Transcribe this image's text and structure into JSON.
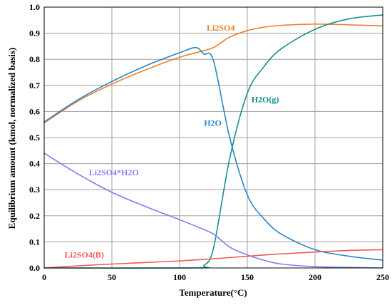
{
  "chart_data": {
    "type": "line",
    "title": "",
    "xlabel": "Temperature(°C)",
    "ylabel": "Equilibrium amount (kmol, normalized basis)",
    "xlim": [
      0,
      250
    ],
    "ylim": [
      0,
      1.0
    ],
    "x_ticks": [
      "0",
      "50",
      "100",
      "150",
      "200",
      "250"
    ],
    "y_ticks": [
      "0.0",
      "0.1",
      "0.2",
      "0.3",
      "0.4",
      "0.5",
      "0.6",
      "0.7",
      "0.8",
      "0.9",
      "1.0"
    ],
    "x_tick_values": [
      0,
      50,
      100,
      150,
      200,
      250
    ],
    "y_tick_values": [
      0,
      0.1,
      0.2,
      0.3,
      0.4,
      0.5,
      0.6,
      0.7,
      0.8,
      0.9,
      1.0
    ],
    "grid": true,
    "series": [
      {
        "name": "Li2SO4",
        "color": "#f07f2f",
        "label_pos": [
          120,
          0.91
        ],
        "points": [
          [
            0,
            0.556
          ],
          [
            25,
            0.64
          ],
          [
            50,
            0.705
          ],
          [
            75,
            0.76
          ],
          [
            100,
            0.808
          ],
          [
            112,
            0.825
          ],
          [
            125,
            0.845
          ],
          [
            137,
            0.885
          ],
          [
            150,
            0.91
          ],
          [
            162,
            0.923
          ],
          [
            175,
            0.93
          ],
          [
            200,
            0.935
          ],
          [
            225,
            0.932
          ],
          [
            250,
            0.928
          ]
        ]
      },
      {
        "name": "H2O",
        "color": "#2a85c8",
        "label_pos": [
          118,
          0.545
        ],
        "points": [
          [
            0,
            0.56
          ],
          [
            25,
            0.645
          ],
          [
            50,
            0.715
          ],
          [
            75,
            0.775
          ],
          [
            100,
            0.825
          ],
          [
            112,
            0.845
          ],
          [
            118,
            0.82
          ],
          [
            125,
            0.795
          ],
          [
            137,
            0.5
          ],
          [
            150,
            0.28
          ],
          [
            162,
            0.19
          ],
          [
            175,
            0.13
          ],
          [
            200,
            0.07
          ],
          [
            225,
            0.045
          ],
          [
            250,
            0.03
          ]
        ]
      },
      {
        "name": "H2O(g)",
        "color": "#159090",
        "label_pos": [
          153,
          0.635
        ],
        "points": [
          [
            0,
            0.0
          ],
          [
            112,
            0.0
          ],
          [
            118,
            0.01
          ],
          [
            125,
            0.075
          ],
          [
            137,
            0.42
          ],
          [
            150,
            0.67
          ],
          [
            162,
            0.77
          ],
          [
            175,
            0.84
          ],
          [
            200,
            0.915
          ],
          [
            225,
            0.955
          ],
          [
            250,
            0.97
          ]
        ]
      },
      {
        "name": "Li2SO4*H2O",
        "color": "#7f7ff0",
        "label_pos": [
          33,
          0.355
        ],
        "points": [
          [
            0,
            0.44
          ],
          [
            25,
            0.36
          ],
          [
            50,
            0.29
          ],
          [
            75,
            0.235
          ],
          [
            100,
            0.185
          ],
          [
            112,
            0.16
          ],
          [
            125,
            0.13
          ],
          [
            137,
            0.08
          ],
          [
            150,
            0.05
          ],
          [
            162,
            0.03
          ],
          [
            175,
            0.015
          ],
          [
            200,
            0.005
          ],
          [
            225,
            0.002
          ],
          [
            250,
            0.0
          ]
        ]
      },
      {
        "name": "Li2SO4(B)",
        "color": "#f05a5a",
        "label_pos": [
          15,
          0.04
        ],
        "points": [
          [
            0,
            0.0
          ],
          [
            25,
            0.008
          ],
          [
            50,
            0.015
          ],
          [
            75,
            0.021
          ],
          [
            100,
            0.027
          ],
          [
            125,
            0.035
          ],
          [
            150,
            0.045
          ],
          [
            175,
            0.054
          ],
          [
            200,
            0.061
          ],
          [
            225,
            0.067
          ],
          [
            250,
            0.07
          ]
        ]
      }
    ]
  }
}
